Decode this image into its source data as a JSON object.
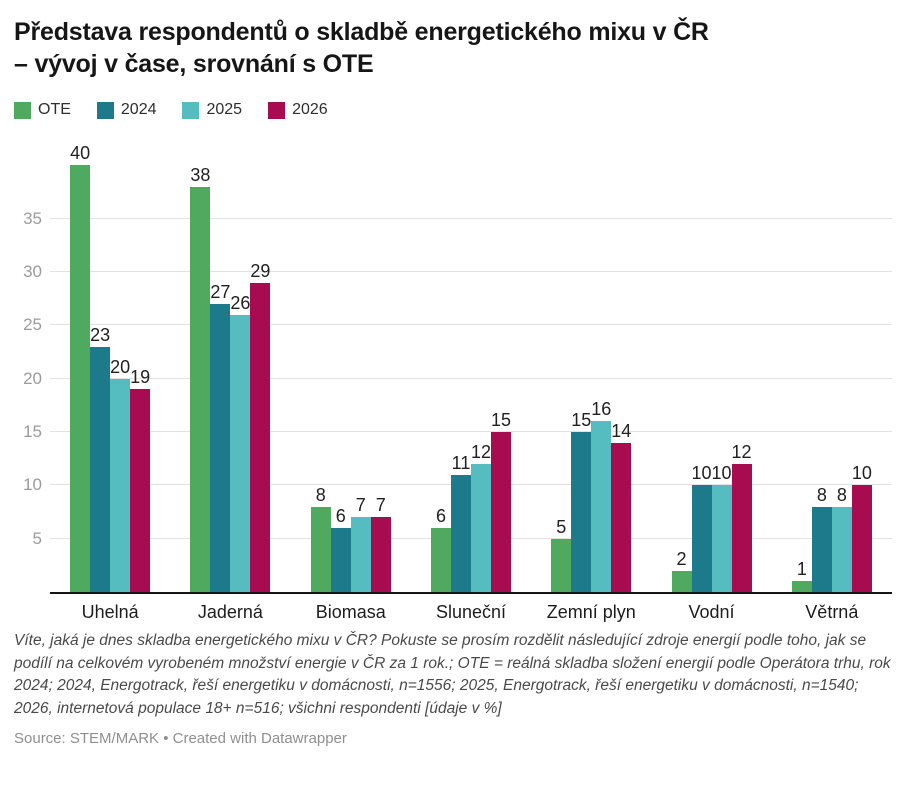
{
  "title": {
    "line1": "Představa respondentů o skladbě energetického mixu v ČR",
    "line2": "– vývoj v čase, srovnání s OTE"
  },
  "legend": [
    {
      "label": "OTE",
      "color": "#4faa60"
    },
    {
      "label": "2024",
      "color": "#1d7a8a"
    },
    {
      "label": "2025",
      "color": "#55bcc0"
    },
    {
      "label": "2026",
      "color": "#a70b50"
    }
  ],
  "chart_data": {
    "type": "bar",
    "categories": [
      "Uhelná",
      "Jaderná",
      "Biomasa",
      "Sluneční",
      "Zemní plyn",
      "Vodní",
      "Větrná"
    ],
    "series": [
      {
        "name": "OTE",
        "color": "#4faa60",
        "values": [
          40,
          38,
          8,
          6,
          5,
          2,
          1
        ]
      },
      {
        "name": "2024",
        "color": "#1d7a8a",
        "values": [
          23,
          27,
          6,
          11,
          15,
          10,
          8
        ]
      },
      {
        "name": "2025",
        "color": "#55bcc0",
        "values": [
          20,
          26,
          7,
          12,
          16,
          10,
          8
        ]
      },
      {
        "name": "2026",
        "color": "#a70b50",
        "values": [
          19,
          29,
          7,
          15,
          14,
          12,
          10
        ]
      }
    ],
    "yticks": [
      5,
      10,
      15,
      20,
      25,
      30,
      35
    ],
    "ylim": [
      0,
      42.1
    ],
    "grid": true,
    "legend_position": "top",
    "value_labels": true
  },
  "footer": {
    "note": "Víte, jaká je dnes skladba energetického mixu v ČR? Pokuste se prosím rozdělit následující zdroje energií podle toho, jak se podílí na celkovém vyrobeném množství energie v ČR za 1 rok.; OTE = reálná skladba složení energií podle Operátora trhu, rok 2024; 2024, Energotrack, řeší energetiku v domácnosti, n=1556; 2025, Energotrack, řeší energetiku v domácnosti, n=1540; 2026, internetová populace 18+ n=516; všichni respondenti [údaje v %]",
    "source": "Source: STEM/MARK • Created with Datawrapper"
  }
}
